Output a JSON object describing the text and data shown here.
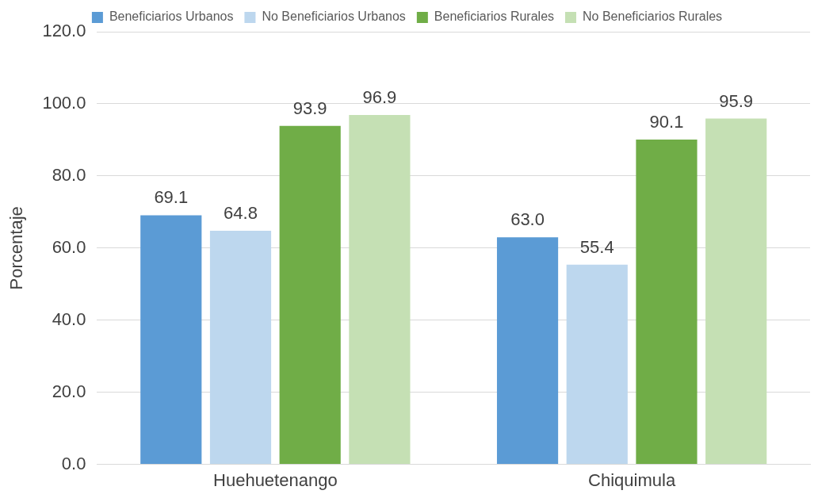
{
  "chart_data": {
    "type": "bar",
    "ylabel": "Porcentaje",
    "categories": [
      "Huehuetenango",
      "Chiquimula"
    ],
    "series": [
      {
        "name": "Beneficiarios Urbanos",
        "color": "#5b9bd5",
        "values": [
          69.1,
          63.0
        ],
        "value_labels": [
          "69.1",
          "63.0"
        ]
      },
      {
        "name": "No Beneficiarios Urbanos",
        "color": "#bdd7ee",
        "values": [
          64.8,
          55.4
        ],
        "value_labels": [
          "64.8",
          "55.4"
        ]
      },
      {
        "name": "Beneficiarios Rurales",
        "color": "#70ad47",
        "values": [
          93.9,
          90.1
        ],
        "value_labels": [
          "93.9",
          "90.1"
        ]
      },
      {
        "name": "No Beneficiarios Rurales",
        "color": "#c5e0b4",
        "values": [
          96.9,
          95.9
        ],
        "value_labels": [
          "96.9",
          "95.9"
        ]
      }
    ],
    "ylim": [
      0,
      120
    ],
    "yticks": [
      {
        "value": 0,
        "label": "0.0"
      },
      {
        "value": 20,
        "label": "20.0"
      },
      {
        "value": 40,
        "label": "40.0"
      },
      {
        "value": 60,
        "label": "60.0"
      },
      {
        "value": 80,
        "label": "80.0"
      },
      {
        "value": 100,
        "label": "100.0"
      },
      {
        "value": 120,
        "label": "120.0"
      }
    ],
    "grid": "y",
    "legend": "top"
  }
}
